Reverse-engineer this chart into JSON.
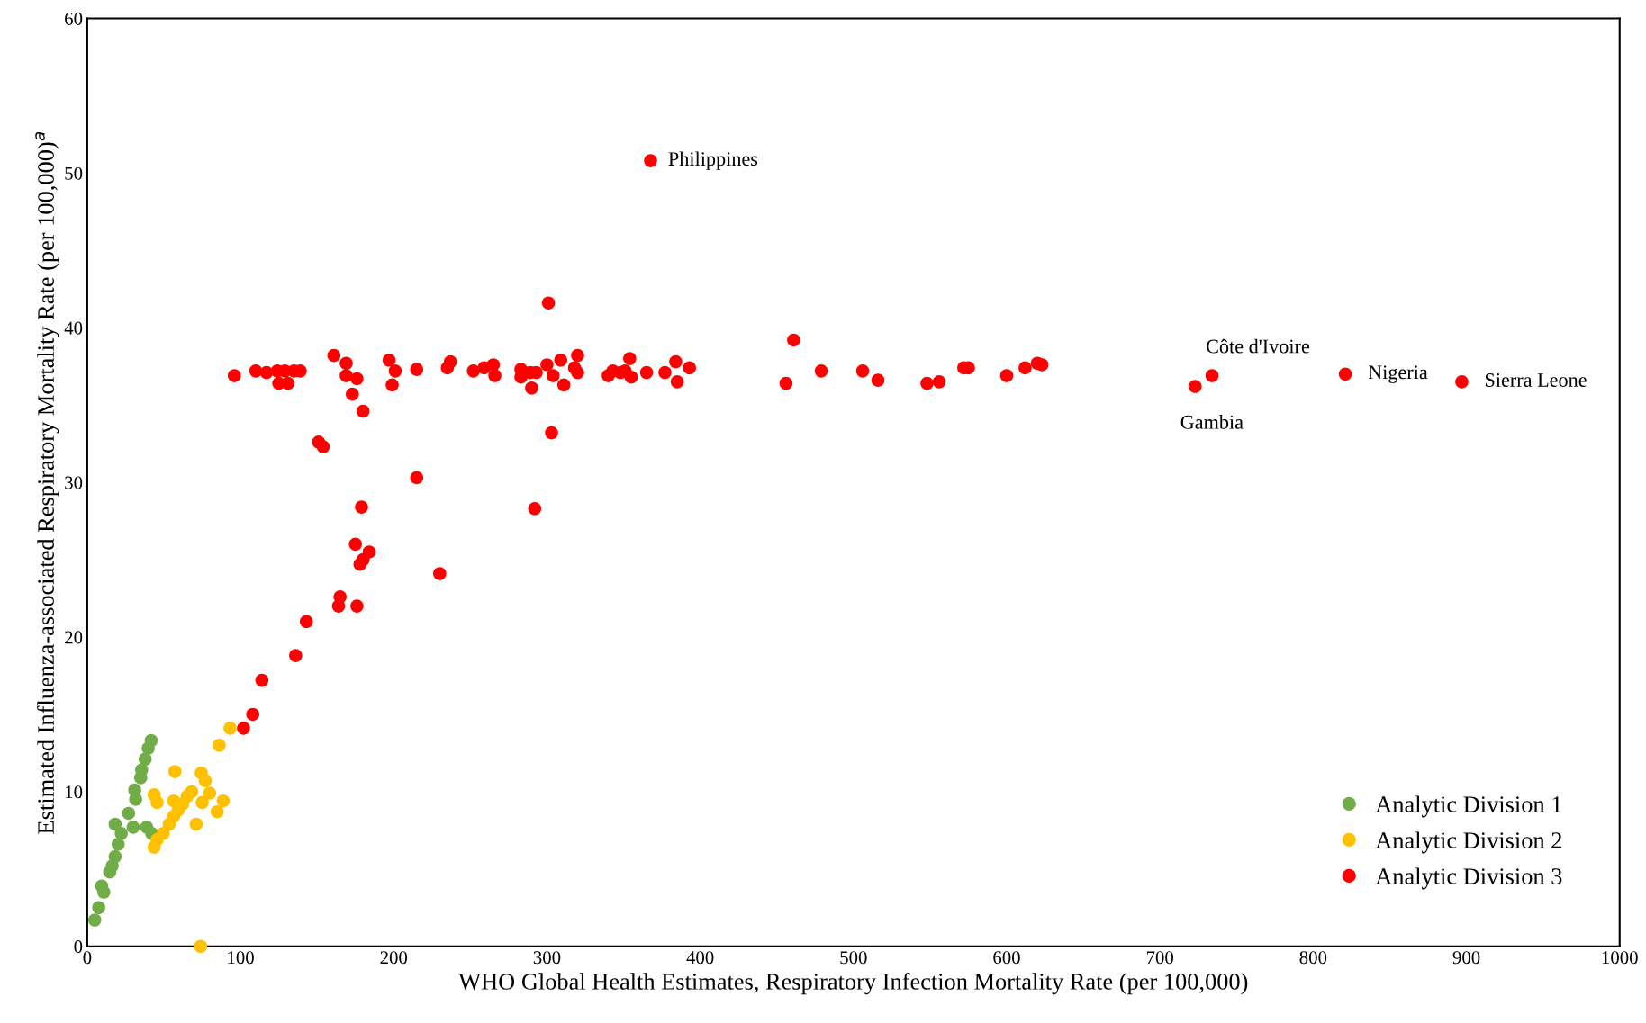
{
  "chart_data": {
    "type": "scatter",
    "xlabel": "WHO Global Health Estimates, Respiratory Infection Mortality Rate (per 100,000)",
    "ylabel": "Estimated Influenza-associated Respiratory Mortality Rate (per 100,000)$^{a}$",
    "xlim": [
      0,
      1000
    ],
    "ylim": [
      0,
      60
    ],
    "xticks": [
      0,
      100,
      200,
      300,
      400,
      500,
      600,
      700,
      800,
      900,
      1000
    ],
    "yticks": [
      0,
      10,
      20,
      30,
      40,
      50,
      60
    ],
    "grid": false,
    "legend": "bottom right",
    "marker": "circle",
    "series": [
      {
        "name": "Analytic Division 1",
        "color": "#70ad47",
        "x": [
          41.7,
          39.8,
          37.8,
          35.5,
          34.9,
          31.0,
          31.6,
          27.0,
          18.2,
          26.1,
          30.0,
          38.8,
          42.1,
          22.2,
          20.2,
          18.2,
          16.3,
          14.7,
          9.4,
          10.8,
          8.0,
          7.5,
          4.9
        ],
        "values": [
          13.3,
          12.8,
          12.1,
          11.4,
          10.9,
          10.1,
          9.5,
          8.6,
          7.9,
          null,
          7.7,
          7.7,
          7.3,
          7.3,
          6.6,
          5.8,
          5.2,
          4.8,
          3.9,
          3.5,
          null,
          2.5,
          1.7
        ]
      },
      {
        "name": "Analytic Division 2",
        "color": "#ffc000",
        "x": [
          93.2,
          86.1,
          57.2,
          74.4,
          77.0,
          43.7,
          45.6,
          53.5,
          79.9,
          75.0,
          88.7,
          84.8,
          71.1,
          43.7,
          45.6,
          49.6,
          53.5,
          56.4,
          59.4,
          62.3,
          65.2,
          68.2,
          56.4,
          74.0
        ],
        "values": [
          14.1,
          13.0,
          11.3,
          11.2,
          10.7,
          9.8,
          9.3,
          null,
          9.9,
          9.3,
          9.4,
          8.7,
          7.9,
          6.4,
          6.9,
          7.3,
          7.9,
          8.4,
          8.8,
          9.2,
          9.7,
          10.0,
          9.4,
          0
        ]
      },
      {
        "name": "Analytic Division 3",
        "color": "#ff0000",
        "x": [
          367.6,
          301,
          461,
          96,
          110,
          117,
          124,
          125,
          129,
          131,
          135,
          139,
          161,
          169,
          169,
          176,
          173,
          180,
          197,
          201,
          199,
          215,
          237,
          235,
          252,
          259,
          266,
          265,
          283,
          283,
          289,
          290,
          293,
          300,
          304,
          309,
          311,
          318,
          320,
          320,
          340,
          343,
          348,
          351,
          354,
          355,
          365,
          377,
          384,
          385,
          393,
          456,
          479,
          506,
          516,
          548,
          556,
          572,
          575,
          600,
          612,
          620,
          623,
          723,
          734,
          821,
          897,
          151,
          154,
          303,
          215,
          292,
          179,
          175,
          184,
          180,
          178,
          230,
          165,
          164,
          176,
          143,
          136,
          114,
          108,
          102
        ],
        "values": [
          50.8,
          41.6,
          39.2,
          36.9,
          37.2,
          37.1,
          37.2,
          36.4,
          37.2,
          36.4,
          37.2,
          37.2,
          38.2,
          37.7,
          36.9,
          36.7,
          35.7,
          34.6,
          37.9,
          37.2,
          36.3,
          37.3,
          37.8,
          37.4,
          37.2,
          37.4,
          36.9,
          37.6,
          36.8,
          37.3,
          37.1,
          36.1,
          37.1,
          37.6,
          36.9,
          37.9,
          36.3,
          37.4,
          38.2,
          37.1,
          36.9,
          37.2,
          37.1,
          37.2,
          38.0,
          36.8,
          37.1,
          37.1,
          37.8,
          36.5,
          37.4,
          36.4,
          37.2,
          37.2,
          36.6,
          36.4,
          36.5,
          37.4,
          37.4,
          36.9,
          37.4,
          37.7,
          37.6,
          36.2,
          36.9,
          37.0,
          36.5,
          32.6,
          32.3,
          33.2,
          30.3,
          28.3,
          28.4,
          26.0,
          25.5,
          25.0,
          24.7,
          24.1,
          22.6,
          22.0,
          22.0,
          21.0,
          18.8,
          17.2,
          15.0,
          14.1
        ]
      }
    ],
    "annotations": [
      {
        "text": "Philippines",
        "x": 367.6,
        "y": 50.8
      },
      {
        "text": "Côte d'Ivoire",
        "x": 734,
        "y": 36.9
      },
      {
        "text": "Gambia",
        "x": 723,
        "y": 36.2
      },
      {
        "text": "Nigeria",
        "x": 821,
        "y": 37.0
      },
      {
        "text": "Sierra Leone",
        "x": 897,
        "y": 36.5
      }
    ]
  }
}
